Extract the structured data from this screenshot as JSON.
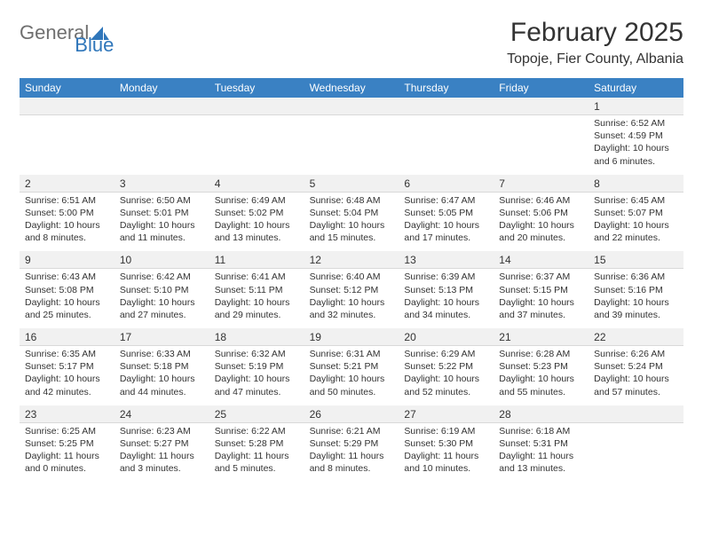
{
  "logo": {
    "general": "General",
    "blue": "Blue"
  },
  "title": "February 2025",
  "location": "Topoje, Fier County, Albania",
  "colors": {
    "header_bg": "#3a81c3",
    "header_text": "#ffffff",
    "daynum_bg": "#f1f1f1",
    "text": "#333333",
    "logo_gray": "#6f6f6f",
    "logo_blue": "#2f76ba"
  },
  "weekdays": [
    "Sunday",
    "Monday",
    "Tuesday",
    "Wednesday",
    "Thursday",
    "Friday",
    "Saturday"
  ],
  "weeks": [
    [
      {
        "n": "",
        "sr": "",
        "ss": "",
        "dl1": "",
        "dl2": ""
      },
      {
        "n": "",
        "sr": "",
        "ss": "",
        "dl1": "",
        "dl2": ""
      },
      {
        "n": "",
        "sr": "",
        "ss": "",
        "dl1": "",
        "dl2": ""
      },
      {
        "n": "",
        "sr": "",
        "ss": "",
        "dl1": "",
        "dl2": ""
      },
      {
        "n": "",
        "sr": "",
        "ss": "",
        "dl1": "",
        "dl2": ""
      },
      {
        "n": "",
        "sr": "",
        "ss": "",
        "dl1": "",
        "dl2": ""
      },
      {
        "n": "1",
        "sr": "Sunrise: 6:52 AM",
        "ss": "Sunset: 4:59 PM",
        "dl1": "Daylight: 10 hours",
        "dl2": "and 6 minutes."
      }
    ],
    [
      {
        "n": "2",
        "sr": "Sunrise: 6:51 AM",
        "ss": "Sunset: 5:00 PM",
        "dl1": "Daylight: 10 hours",
        "dl2": "and 8 minutes."
      },
      {
        "n": "3",
        "sr": "Sunrise: 6:50 AM",
        "ss": "Sunset: 5:01 PM",
        "dl1": "Daylight: 10 hours",
        "dl2": "and 11 minutes."
      },
      {
        "n": "4",
        "sr": "Sunrise: 6:49 AM",
        "ss": "Sunset: 5:02 PM",
        "dl1": "Daylight: 10 hours",
        "dl2": "and 13 minutes."
      },
      {
        "n": "5",
        "sr": "Sunrise: 6:48 AM",
        "ss": "Sunset: 5:04 PM",
        "dl1": "Daylight: 10 hours",
        "dl2": "and 15 minutes."
      },
      {
        "n": "6",
        "sr": "Sunrise: 6:47 AM",
        "ss": "Sunset: 5:05 PM",
        "dl1": "Daylight: 10 hours",
        "dl2": "and 17 minutes."
      },
      {
        "n": "7",
        "sr": "Sunrise: 6:46 AM",
        "ss": "Sunset: 5:06 PM",
        "dl1": "Daylight: 10 hours",
        "dl2": "and 20 minutes."
      },
      {
        "n": "8",
        "sr": "Sunrise: 6:45 AM",
        "ss": "Sunset: 5:07 PM",
        "dl1": "Daylight: 10 hours",
        "dl2": "and 22 minutes."
      }
    ],
    [
      {
        "n": "9",
        "sr": "Sunrise: 6:43 AM",
        "ss": "Sunset: 5:08 PM",
        "dl1": "Daylight: 10 hours",
        "dl2": "and 25 minutes."
      },
      {
        "n": "10",
        "sr": "Sunrise: 6:42 AM",
        "ss": "Sunset: 5:10 PM",
        "dl1": "Daylight: 10 hours",
        "dl2": "and 27 minutes."
      },
      {
        "n": "11",
        "sr": "Sunrise: 6:41 AM",
        "ss": "Sunset: 5:11 PM",
        "dl1": "Daylight: 10 hours",
        "dl2": "and 29 minutes."
      },
      {
        "n": "12",
        "sr": "Sunrise: 6:40 AM",
        "ss": "Sunset: 5:12 PM",
        "dl1": "Daylight: 10 hours",
        "dl2": "and 32 minutes."
      },
      {
        "n": "13",
        "sr": "Sunrise: 6:39 AM",
        "ss": "Sunset: 5:13 PM",
        "dl1": "Daylight: 10 hours",
        "dl2": "and 34 minutes."
      },
      {
        "n": "14",
        "sr": "Sunrise: 6:37 AM",
        "ss": "Sunset: 5:15 PM",
        "dl1": "Daylight: 10 hours",
        "dl2": "and 37 minutes."
      },
      {
        "n": "15",
        "sr": "Sunrise: 6:36 AM",
        "ss": "Sunset: 5:16 PM",
        "dl1": "Daylight: 10 hours",
        "dl2": "and 39 minutes."
      }
    ],
    [
      {
        "n": "16",
        "sr": "Sunrise: 6:35 AM",
        "ss": "Sunset: 5:17 PM",
        "dl1": "Daylight: 10 hours",
        "dl2": "and 42 minutes."
      },
      {
        "n": "17",
        "sr": "Sunrise: 6:33 AM",
        "ss": "Sunset: 5:18 PM",
        "dl1": "Daylight: 10 hours",
        "dl2": "and 44 minutes."
      },
      {
        "n": "18",
        "sr": "Sunrise: 6:32 AM",
        "ss": "Sunset: 5:19 PM",
        "dl1": "Daylight: 10 hours",
        "dl2": "and 47 minutes."
      },
      {
        "n": "19",
        "sr": "Sunrise: 6:31 AM",
        "ss": "Sunset: 5:21 PM",
        "dl1": "Daylight: 10 hours",
        "dl2": "and 50 minutes."
      },
      {
        "n": "20",
        "sr": "Sunrise: 6:29 AM",
        "ss": "Sunset: 5:22 PM",
        "dl1": "Daylight: 10 hours",
        "dl2": "and 52 minutes."
      },
      {
        "n": "21",
        "sr": "Sunrise: 6:28 AM",
        "ss": "Sunset: 5:23 PM",
        "dl1": "Daylight: 10 hours",
        "dl2": "and 55 minutes."
      },
      {
        "n": "22",
        "sr": "Sunrise: 6:26 AM",
        "ss": "Sunset: 5:24 PM",
        "dl1": "Daylight: 10 hours",
        "dl2": "and 57 minutes."
      }
    ],
    [
      {
        "n": "23",
        "sr": "Sunrise: 6:25 AM",
        "ss": "Sunset: 5:25 PM",
        "dl1": "Daylight: 11 hours",
        "dl2": "and 0 minutes."
      },
      {
        "n": "24",
        "sr": "Sunrise: 6:23 AM",
        "ss": "Sunset: 5:27 PM",
        "dl1": "Daylight: 11 hours",
        "dl2": "and 3 minutes."
      },
      {
        "n": "25",
        "sr": "Sunrise: 6:22 AM",
        "ss": "Sunset: 5:28 PM",
        "dl1": "Daylight: 11 hours",
        "dl2": "and 5 minutes."
      },
      {
        "n": "26",
        "sr": "Sunrise: 6:21 AM",
        "ss": "Sunset: 5:29 PM",
        "dl1": "Daylight: 11 hours",
        "dl2": "and 8 minutes."
      },
      {
        "n": "27",
        "sr": "Sunrise: 6:19 AM",
        "ss": "Sunset: 5:30 PM",
        "dl1": "Daylight: 11 hours",
        "dl2": "and 10 minutes."
      },
      {
        "n": "28",
        "sr": "Sunrise: 6:18 AM",
        "ss": "Sunset: 5:31 PM",
        "dl1": "Daylight: 11 hours",
        "dl2": "and 13 minutes."
      },
      {
        "n": "",
        "sr": "",
        "ss": "",
        "dl1": "",
        "dl2": ""
      }
    ]
  ]
}
